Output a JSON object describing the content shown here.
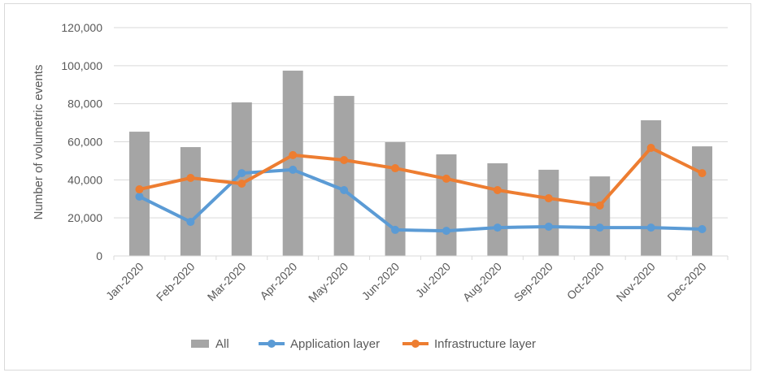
{
  "chart_data": {
    "type": "bar+line",
    "title": "",
    "xlabel": "",
    "ylabel": "Number of volumetric events",
    "ylim": [
      0,
      120000
    ],
    "yticks": [
      0,
      20000,
      40000,
      60000,
      80000,
      100000,
      120000
    ],
    "ytick_labels": [
      "0",
      "20,000",
      "40,000",
      "60,000",
      "80,000",
      "100,000",
      "120,000"
    ],
    "grid": true,
    "legend": "bottom",
    "categories": [
      "Jan-2020",
      "Feb-2020",
      "Mar-2020",
      "Apr-2020",
      "May-2020",
      "Jun-2020",
      "Jul-2020",
      "Aug-2020",
      "Sep-2020",
      "Oct-2020",
      "Nov-2020",
      "Dec-2020"
    ],
    "series": [
      {
        "name": "All",
        "kind": "bar",
        "color": "#a5a5a5",
        "values": [
          65300,
          57200,
          80700,
          97400,
          84100,
          59800,
          53400,
          48700,
          45300,
          41800,
          71300,
          57600
        ]
      },
      {
        "name": "Application layer",
        "kind": "line",
        "color": "#5b9bd5",
        "values": [
          31200,
          17900,
          43500,
          45300,
          34600,
          13700,
          13200,
          14900,
          15400,
          14900,
          14900,
          14100
        ]
      },
      {
        "name": "Infrastructure layer",
        "kind": "line",
        "color": "#ed7d31",
        "values": [
          35000,
          41000,
          38000,
          53000,
          50400,
          46100,
          40600,
          34600,
          30300,
          26500,
          56800,
          43500
        ]
      }
    ]
  }
}
